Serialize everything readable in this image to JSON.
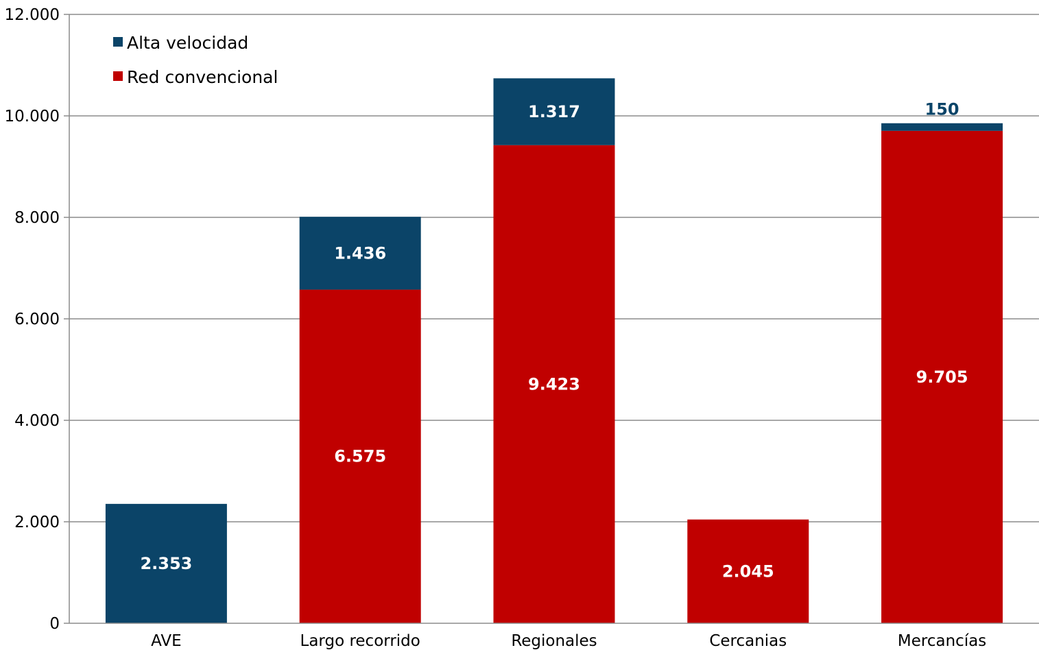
{
  "chart_data": {
    "type": "bar",
    "stacked": true,
    "categories": [
      "AVE",
      "Largo recorrido",
      "Regionales",
      "Cercanias",
      "Mercancías"
    ],
    "series": [
      {
        "name": "Red convencional",
        "color": "#c00000",
        "values": [
          0,
          6575,
          9423,
          2045,
          9705
        ],
        "labels": [
          "",
          "6.575",
          "9.423",
          "2.045",
          "9.705"
        ]
      },
      {
        "name": "Alta velocidad",
        "color": "#0b4468",
        "values": [
          2353,
          1436,
          1317,
          0,
          150
        ],
        "labels": [
          "2.353",
          "1.436",
          "1.317",
          "",
          "150"
        ]
      }
    ],
    "legend_order": [
      "Alta velocidad",
      "Red convencional"
    ],
    "legend_position": "top-left",
    "ylim": [
      0,
      12000
    ],
    "yticks": [
      0,
      2000,
      4000,
      6000,
      8000,
      10000,
      12000
    ],
    "ytick_labels": [
      "0",
      "2.000",
      "4.000",
      "6.000",
      "8.000",
      "10.000",
      "12.000"
    ],
    "grid": true,
    "xlabel": "",
    "ylabel": "",
    "title": ""
  }
}
